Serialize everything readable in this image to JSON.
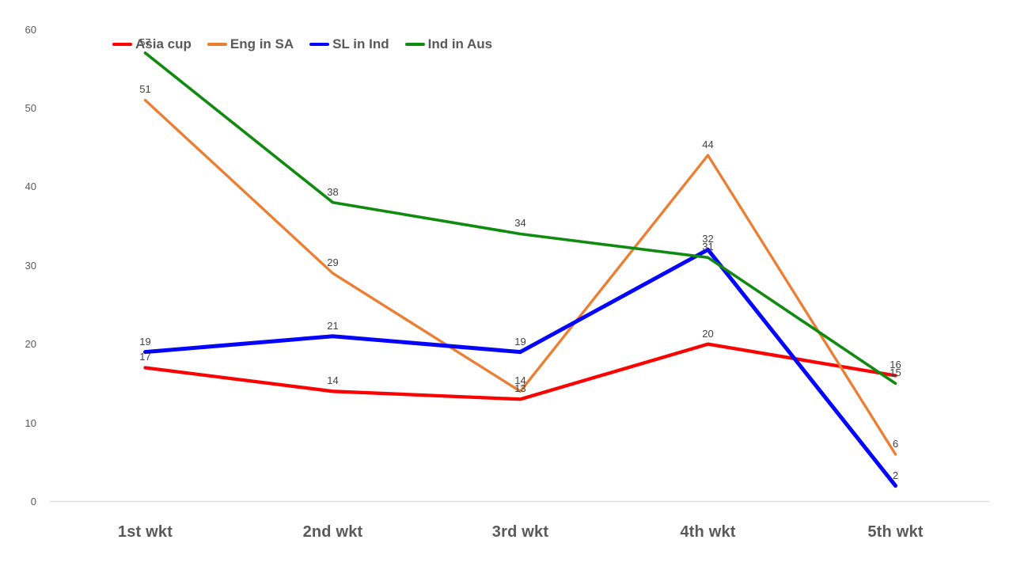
{
  "chart_data": {
    "type": "line",
    "title": "",
    "xlabel": "",
    "ylabel": "",
    "categories": [
      "1st wkt",
      "2nd wkt",
      "3rd wkt",
      "4th wkt",
      "5th wkt"
    ],
    "series": [
      {
        "name": "Asia cup",
        "color": "#FE0000",
        "stroke_width": 4.3,
        "values": [
          17,
          14,
          13,
          20,
          16
        ]
      },
      {
        "name": "Eng in SA",
        "color": "#ED7D31",
        "stroke_width": 3.3,
        "values": [
          51,
          29,
          14,
          44,
          6
        ]
      },
      {
        "name": "SL in Ind",
        "color": "#0404FF",
        "stroke_width": 5,
        "values": [
          19,
          21,
          19,
          32,
          2
        ]
      },
      {
        "name": "Ind in Aus",
        "color": "#108B10",
        "stroke_width": 3.6,
        "values": [
          57,
          38,
          34,
          31,
          15
        ]
      }
    ],
    "yticks": [
      0,
      10,
      20,
      30,
      40,
      50,
      60
    ],
    "ylim": [
      0,
      60
    ],
    "grid": false,
    "data_labels": true,
    "legend_position": "top-left",
    "colors": {
      "axis_line": "#D9D9D9",
      "tick_label": "#595959",
      "category_label": "#595959",
      "data_label": "#404040",
      "legend_label": "#595959",
      "background": "#FFFFFF"
    }
  }
}
